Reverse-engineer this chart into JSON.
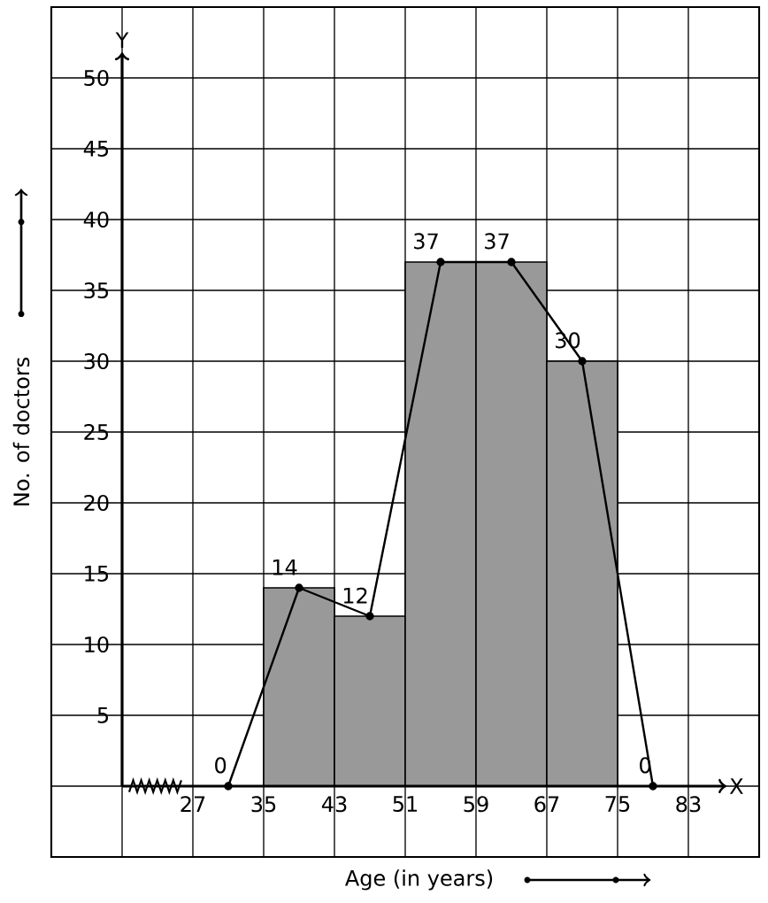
{
  "chart_data": {
    "type": "histogram",
    "xlabel": "Age (in years)",
    "ylabel": "No. of doctors",
    "bins": [
      35,
      43,
      51,
      59,
      67,
      75
    ],
    "values": [
      14,
      12,
      37,
      37,
      30
    ],
    "color": "#999999",
    "series": [
      {
        "type": "line",
        "x": [
          31,
          39,
          47,
          55,
          63,
          71,
          79
        ],
        "values": [
          0,
          14,
          12,
          37,
          37,
          30,
          0
        ],
        "value_labels": [
          "0",
          "14",
          "12",
          "37",
          "37",
          "30",
          "0"
        ],
        "color": "#000000"
      }
    ],
    "marker": "circle",
    "grid": true,
    "xlim": [
      11,
      91
    ],
    "ylim": [
      -5,
      55
    ],
    "xticks": [
      27,
      35,
      43,
      51,
      59,
      67,
      75,
      83
    ],
    "yticks": [
      5,
      10,
      15,
      20,
      25,
      30,
      35,
      40,
      45,
      50
    ],
    "ref_lines": [
      {
        "axis": "x",
        "value": 19,
        "label": "Y"
      },
      {
        "axis": "y",
        "value": 0,
        "label": "X"
      }
    ]
  }
}
